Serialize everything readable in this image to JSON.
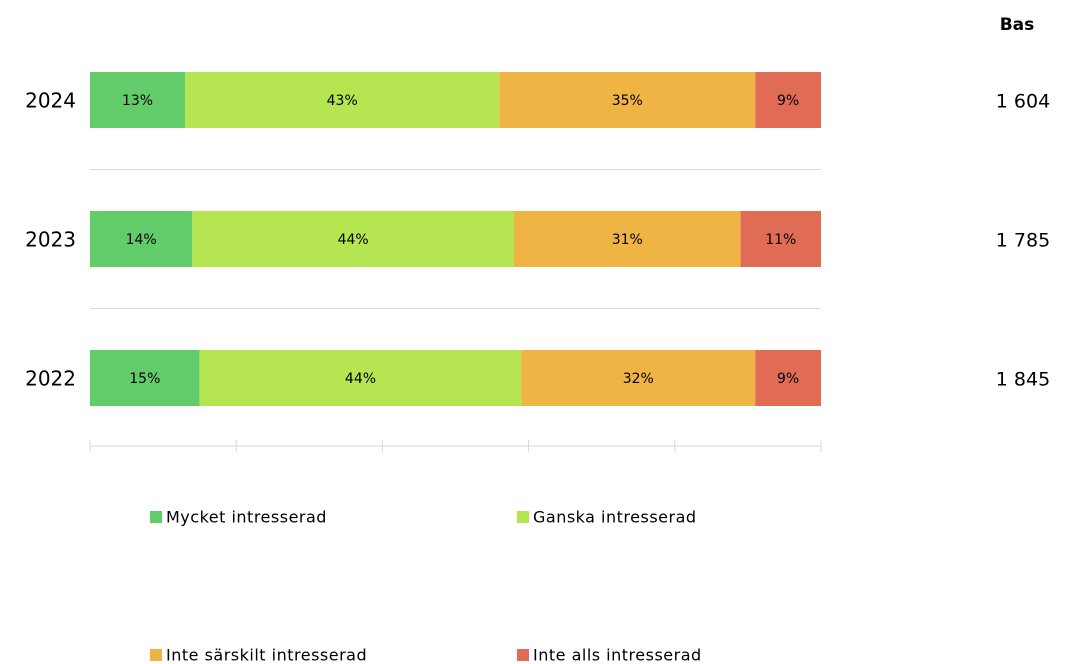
{
  "chart_data": {
    "type": "stacked_barh",
    "categories": [
      "2024",
      "2023",
      "2022"
    ],
    "series": [
      {
        "name": "Mycket intresserad",
        "color": "#63cc6a",
        "values": [
          13,
          14,
          15
        ],
        "value_labels": [
          "13%",
          "14%",
          "15%"
        ]
      },
      {
        "name": "Ganska intresserad",
        "color": "#b5e550",
        "values": [
          43,
          44,
          44
        ],
        "value_labels": [
          "43%",
          "44%",
          "44%"
        ]
      },
      {
        "name": "Inte särskilt intresserad",
        "color": "#f0b444",
        "values": [
          35,
          31,
          32
        ],
        "value_labels": [
          "35%",
          "31%",
          "32%"
        ]
      },
      {
        "name": "Inte alls intresserad",
        "color": "#e06c55",
        "values": [
          9,
          11,
          9
        ],
        "value_labels": [
          "9%",
          "11%",
          "9%"
        ]
      }
    ],
    "xlim": [
      0,
      100
    ],
    "xticks": [
      0,
      20,
      40,
      60,
      80,
      100
    ],
    "base_header": "Bas",
    "base_values": [
      "1 604",
      "1 785",
      "1 845"
    ]
  }
}
